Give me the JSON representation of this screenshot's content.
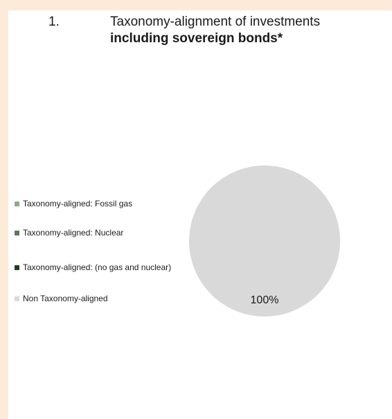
{
  "title": {
    "number": "1.",
    "line1": "Taxonomy-alignment of investments",
    "line2": "including sovereign bonds*"
  },
  "legend": [
    {
      "label": "Taxonomy-aligned: Fossil gas",
      "color": "#92a88d"
    },
    {
      "label": "Taxonomy-aligned: Nuclear",
      "color": "#5a7a5a"
    },
    {
      "label": "Taxonomy-aligned: (no gas and nuclear)",
      "color": "#1f3d1f"
    },
    {
      "label": "Non Taxonomy-aligned",
      "color": "#d9d9d9"
    }
  ],
  "chart_data": {
    "type": "pie",
    "title": "Taxonomy-alignment of investments including sovereign bonds*",
    "slices": [
      {
        "label": "Taxonomy-aligned: Fossil gas",
        "value": 0,
        "color": "#92a88d"
      },
      {
        "label": "Taxonomy-aligned: Nuclear",
        "value": 0,
        "color": "#5a7a5a"
      },
      {
        "label": "Taxonomy-aligned: (no gas and nuclear)",
        "value": 0,
        "color": "#1f3d1f"
      },
      {
        "label": "Non Taxonomy-aligned",
        "value": 100,
        "color": "#d9d9d9",
        "data_label": "100%"
      }
    ],
    "legend_position": "left"
  }
}
